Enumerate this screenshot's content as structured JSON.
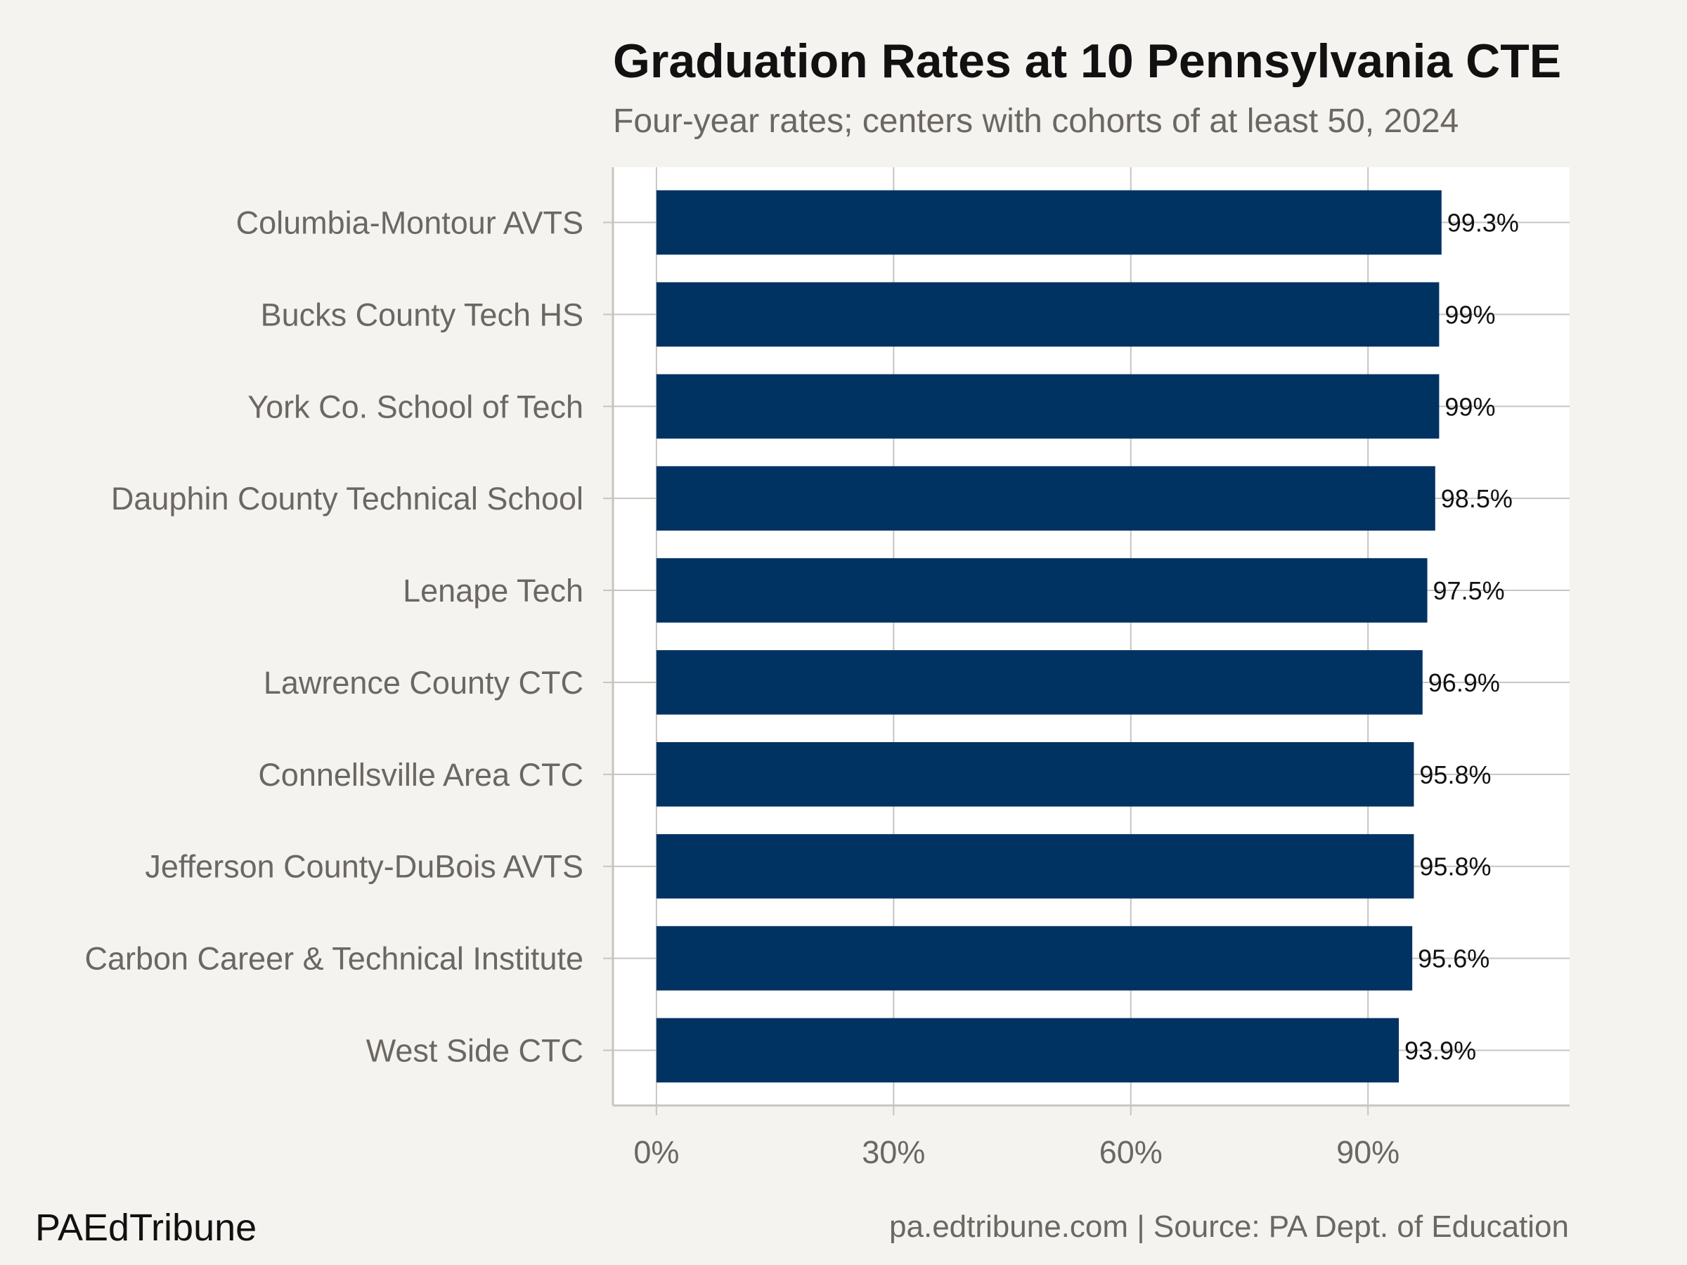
{
  "chart_data": {
    "type": "bar",
    "orientation": "horizontal",
    "title": "Graduation Rates at 10 Pennsylvania CTE",
    "subtitle": "Four-year rates; centers with cohorts of at least 50, 2024",
    "categories": [
      "Columbia-Montour AVTS",
      "Bucks County Tech HS",
      "York Co. School of Tech",
      "Dauphin County Technical School",
      "Lenape Tech",
      "Lawrence County CTC",
      "Connellsville Area CTC",
      "Jefferson County-DuBois AVTS",
      "Carbon Career & Technical Institute",
      "West Side CTC"
    ],
    "values": [
      99.3,
      99.0,
      99.0,
      98.5,
      97.5,
      96.9,
      95.8,
      95.8,
      95.6,
      93.9
    ],
    "data_labels": [
      "99.3%",
      "99%",
      "99%",
      "98.5%",
      "97.5%",
      "96.9%",
      "95.8%",
      "95.8%",
      "95.6%",
      "93.9%"
    ],
    "xlabel": "",
    "ylabel": "",
    "xlim": [
      -5.5,
      115.5
    ],
    "xticks": [
      0,
      30,
      60,
      90
    ],
    "xtick_labels": [
      "0%",
      "30%",
      "60%",
      "90%"
    ],
    "grid": true,
    "legend": "none",
    "colors": {
      "bar": "#003262",
      "background": "#f5f3ef",
      "panel": "#ffffff",
      "grid": "#c8c5bf",
      "title": "#111111",
      "text_muted": "#6b6762"
    }
  },
  "footer": {
    "brand": "PAEdTribune",
    "source": "pa.edtribune.com | Source: PA Dept. of Education"
  }
}
